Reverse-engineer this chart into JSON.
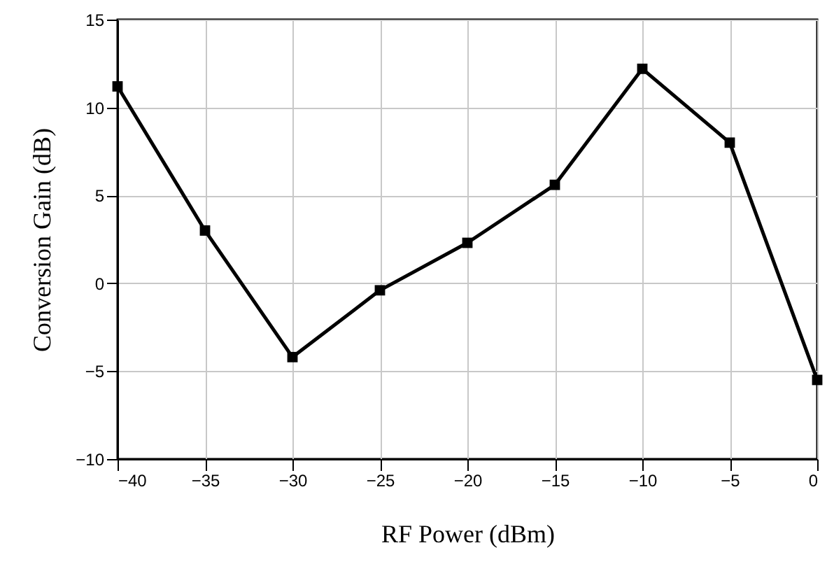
{
  "chart_data": {
    "type": "line",
    "xlabel": "RF Power (dBm)",
    "ylabel": "Conversion Gain (dB)",
    "x": [
      -40,
      -35,
      -30,
      -25,
      -20,
      -15,
      -10,
      -5,
      0
    ],
    "series": [
      {
        "color": "#000000",
        "values": [
          11.2,
          3.0,
          -4.2,
          -0.4,
          2.3,
          5.6,
          12.2,
          8.0,
          -5.5
        ]
      }
    ],
    "xlim": [
      -40,
      0
    ],
    "xticks": [
      -40,
      -35,
      -30,
      -25,
      -20,
      -15,
      -10,
      -5,
      0
    ],
    "ylim": [
      -10,
      15
    ],
    "yticks": [
      -10,
      -5,
      0,
      5,
      10,
      15
    ],
    "grid": true,
    "marker": "square",
    "line_style": "solid"
  }
}
